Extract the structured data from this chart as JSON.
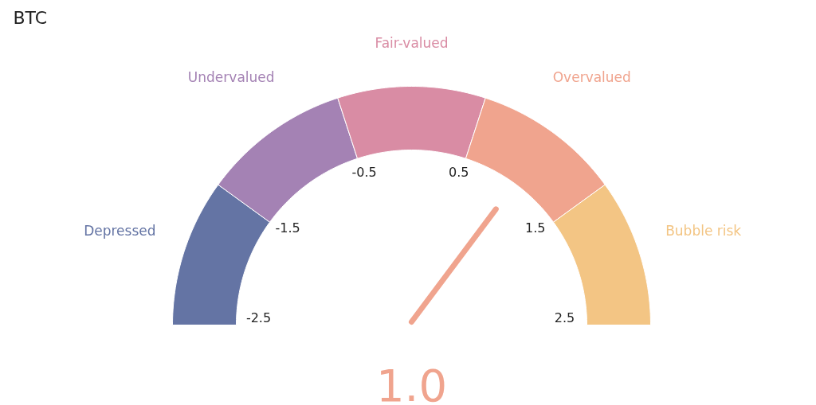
{
  "chart_data": {
    "type": "donut",
    "title": "BTC",
    "categories": [
      "Depressed",
      "Undervalued",
      "Fair-valued",
      "Overvalued",
      "Bubble risk"
    ],
    "values": [
      20,
      20,
      20,
      20,
      20
    ],
    "colors": [
      "#6474a4",
      "#a482b4",
      "#d98ca4",
      "#f0a48e",
      "#f3c584"
    ],
    "needle": "Overvalued",
    "annotations": [
      "-2.5",
      "-1.5",
      "-0.5",
      "0.5",
      "1.5",
      "2.5",
      "1.0"
    ]
  }
}
